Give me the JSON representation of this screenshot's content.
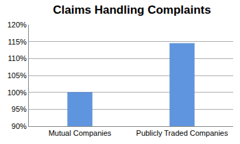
{
  "chart_data": {
    "type": "bar",
    "title": "Claims Handling Complaints",
    "categories": [
      "Mutual Companies",
      "Publicly Traded Companies"
    ],
    "values": [
      100,
      114.5
    ],
    "color": "#5f95de",
    "ylim": [
      90,
      120
    ],
    "yticks": [
      {
        "value": 90,
        "label": "90%"
      },
      {
        "value": 95,
        "label": "95%"
      },
      {
        "value": 100,
        "label": "100%"
      },
      {
        "value": 105,
        "label": "105%"
      },
      {
        "value": 110,
        "label": "110%"
      },
      {
        "value": 115,
        "label": "115%"
      },
      {
        "value": 120,
        "label": "120%"
      }
    ],
    "grid": true
  }
}
